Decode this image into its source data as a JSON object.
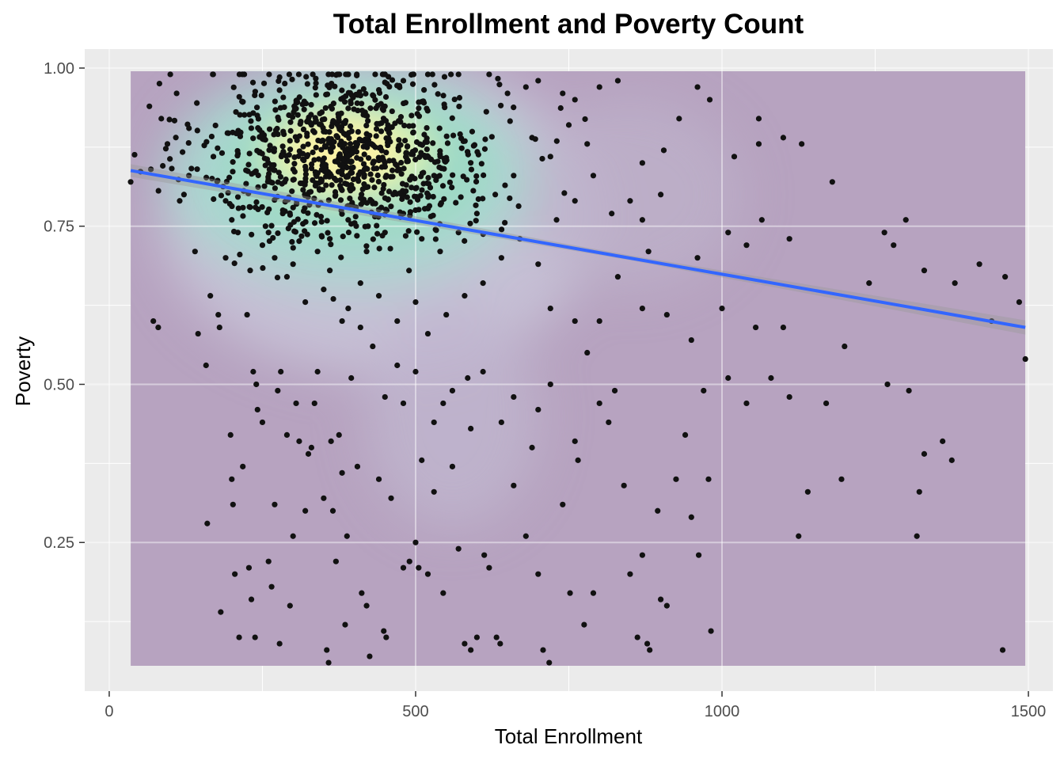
{
  "chart_data": {
    "type": "scatter",
    "title": "Total Enrollment and Poverty Count",
    "xlabel": "Total Enrollment",
    "ylabel": "Poverty",
    "xlim": [
      -40,
      1540
    ],
    "ylim": [
      0.015,
      1.03
    ],
    "x_ticks": [
      0,
      500,
      1000,
      1500
    ],
    "x_tick_labels": [
      "0",
      "500",
      "1000",
      "1500"
    ],
    "y_ticks": [
      0.25,
      0.5,
      0.75,
      1.0
    ],
    "y_tick_labels": [
      "0.25",
      "0.50",
      "0.75",
      "1.00"
    ],
    "grid": true,
    "legend": "none",
    "density_extent": {
      "x": [
        35,
        1495
      ],
      "y": [
        0.055,
        0.995
      ]
    },
    "density_hotspot": {
      "x": 390,
      "y": 0.865
    },
    "trend_line": {
      "x": [
        35,
        1495
      ],
      "y": [
        0.838,
        0.59
      ]
    },
    "colors": {
      "panel_background": "#EBEBEB",
      "density_low": "#B7A3C0",
      "density_high": "#FDF3A6",
      "points": "#111111",
      "trend_line": "#3366FF",
      "confidence_band": "#999999"
    },
    "points": [
      [
        35,
        0.82
      ],
      [
        68,
        0.84
      ],
      [
        72,
        0.6
      ],
      [
        80,
        0.59
      ],
      [
        85,
        0.92
      ],
      [
        95,
        0.88
      ],
      [
        110,
        0.96
      ],
      [
        115,
        0.79
      ],
      [
        122,
        0.8
      ],
      [
        130,
        0.83
      ],
      [
        140,
        0.71
      ],
      [
        145,
        0.58
      ],
      [
        158,
        0.53
      ],
      [
        160,
        0.28
      ],
      [
        165,
        0.64
      ],
      [
        170,
        0.86
      ],
      [
        178,
        0.61
      ],
      [
        180,
        0.59
      ],
      [
        182,
        0.14
      ],
      [
        190,
        0.79
      ],
      [
        198,
        0.42
      ],
      [
        200,
        0.35
      ],
      [
        202,
        0.31
      ],
      [
        205,
        0.2
      ],
      [
        212,
        0.1
      ],
      [
        218,
        0.37
      ],
      [
        225,
        0.61
      ],
      [
        228,
        0.21
      ],
      [
        232,
        0.16
      ],
      [
        235,
        0.52
      ],
      [
        238,
        0.1
      ],
      [
        240,
        0.5
      ],
      [
        242,
        0.46
      ],
      [
        250,
        0.44
      ],
      [
        260,
        0.22
      ],
      [
        265,
        0.18
      ],
      [
        270,
        0.31
      ],
      [
        275,
        0.49
      ],
      [
        278,
        0.09
      ],
      [
        280,
        0.52
      ],
      [
        290,
        0.42
      ],
      [
        295,
        0.15
      ],
      [
        300,
        0.26
      ],
      [
        305,
        0.47
      ],
      [
        310,
        0.41
      ],
      [
        320,
        0.3
      ],
      [
        325,
        0.39
      ],
      [
        330,
        0.4
      ],
      [
        335,
        0.47
      ],
      [
        340,
        0.52
      ],
      [
        350,
        0.32
      ],
      [
        355,
        0.08
      ],
      [
        358,
        0.06
      ],
      [
        362,
        0.41
      ],
      [
        365,
        0.3
      ],
      [
        370,
        0.22
      ],
      [
        375,
        0.42
      ],
      [
        380,
        0.36
      ],
      [
        385,
        0.12
      ],
      [
        388,
        0.26
      ],
      [
        395,
        0.51
      ],
      [
        405,
        0.37
      ],
      [
        412,
        0.17
      ],
      [
        420,
        0.15
      ],
      [
        425,
        0.07
      ],
      [
        440,
        0.35
      ],
      [
        448,
        0.11
      ],
      [
        452,
        0.1
      ],
      [
        460,
        0.32
      ],
      [
        480,
        0.21
      ],
      [
        490,
        0.22
      ],
      [
        500,
        0.25
      ],
      [
        505,
        0.21
      ],
      [
        520,
        0.2
      ],
      [
        530,
        0.33
      ],
      [
        545,
        0.17
      ],
      [
        560,
        0.37
      ],
      [
        570,
        0.24
      ],
      [
        580,
        0.09
      ],
      [
        590,
        0.08
      ],
      [
        600,
        0.1
      ],
      [
        612,
        0.23
      ],
      [
        620,
        0.21
      ],
      [
        632,
        0.1
      ],
      [
        638,
        0.09
      ],
      [
        660,
        0.34
      ],
      [
        680,
        0.26
      ],
      [
        700,
        0.2
      ],
      [
        708,
        0.08
      ],
      [
        718,
        0.06
      ],
      [
        740,
        0.31
      ],
      [
        752,
        0.17
      ],
      [
        760,
        0.41
      ],
      [
        765,
        0.38
      ],
      [
        775,
        0.12
      ],
      [
        790,
        0.17
      ],
      [
        800,
        0.47
      ],
      [
        815,
        0.44
      ],
      [
        825,
        0.49
      ],
      [
        840,
        0.34
      ],
      [
        850,
        0.2
      ],
      [
        862,
        0.1
      ],
      [
        870,
        0.23
      ],
      [
        878,
        0.09
      ],
      [
        882,
        0.08
      ],
      [
        895,
        0.3
      ],
      [
        900,
        0.16
      ],
      [
        910,
        0.15
      ],
      [
        925,
        0.35
      ],
      [
        940,
        0.42
      ],
      [
        950,
        0.29
      ],
      [
        962,
        0.23
      ],
      [
        970,
        0.49
      ],
      [
        978,
        0.35
      ],
      [
        982,
        0.11
      ],
      [
        1040,
        0.47
      ],
      [
        1055,
        0.59
      ],
      [
        1080,
        0.51
      ],
      [
        1110,
        0.48
      ],
      [
        1125,
        0.26
      ],
      [
        1140,
        0.33
      ],
      [
        1170,
        0.47
      ],
      [
        1195,
        0.35
      ],
      [
        1270,
        0.5
      ],
      [
        1305,
        0.49
      ],
      [
        1318,
        0.26
      ],
      [
        1322,
        0.33
      ],
      [
        1330,
        0.39
      ],
      [
        1360,
        0.41
      ],
      [
        1375,
        0.38
      ],
      [
        1440,
        0.6
      ],
      [
        1458,
        0.08
      ],
      [
        1495,
        0.54
      ],
      [
        1200,
        0.56
      ],
      [
        1240,
        0.66
      ],
      [
        1280,
        0.72
      ],
      [
        1330,
        0.68
      ],
      [
        1380,
        0.66
      ],
      [
        1420,
        0.69
      ],
      [
        1462,
        0.67
      ],
      [
        1485,
        0.63
      ],
      [
        1265,
        0.74
      ],
      [
        1300,
        0.76
      ],
      [
        1180,
        0.82
      ],
      [
        1110,
        0.73
      ],
      [
        1060,
        0.88
      ],
      [
        1100,
        0.89
      ],
      [
        1130,
        0.88
      ],
      [
        1060,
        0.92
      ],
      [
        1020,
        0.86
      ],
      [
        980,
        0.95
      ],
      [
        960,
        0.97
      ],
      [
        930,
        0.92
      ],
      [
        905,
        0.87
      ],
      [
        870,
        0.85
      ],
      [
        830,
        0.98
      ],
      [
        800,
        0.97
      ],
      [
        760,
        0.95
      ],
      [
        740,
        0.96
      ],
      [
        700,
        0.98
      ],
      [
        680,
        0.97
      ],
      [
        650,
        0.96
      ],
      [
        620,
        0.99
      ],
      [
        570,
        0.99
      ],
      [
        520,
        0.99
      ],
      [
        480,
        0.98
      ],
      [
        450,
        0.99
      ],
      [
        900,
        0.8
      ],
      [
        870,
        0.76
      ],
      [
        880,
        0.71
      ],
      [
        960,
        0.7
      ],
      [
        1010,
        0.74
      ],
      [
        1040,
        0.72
      ],
      [
        1065,
        0.76
      ],
      [
        1100,
        0.59
      ],
      [
        1010,
        0.51
      ],
      [
        1000,
        0.62
      ],
      [
        950,
        0.57
      ],
      [
        910,
        0.61
      ],
      [
        870,
        0.62
      ],
      [
        830,
        0.67
      ],
      [
        800,
        0.6
      ],
      [
        760,
        0.6
      ],
      [
        720,
        0.62
      ],
      [
        780,
        0.55
      ],
      [
        720,
        0.5
      ],
      [
        700,
        0.46
      ],
      [
        690,
        0.4
      ],
      [
        660,
        0.48
      ],
      [
        640,
        0.44
      ],
      [
        610,
        0.52
      ],
      [
        590,
        0.43
      ],
      [
        585,
        0.51
      ],
      [
        560,
        0.49
      ],
      [
        545,
        0.47
      ],
      [
        530,
        0.44
      ],
      [
        510,
        0.38
      ],
      [
        500,
        0.52
      ],
      [
        480,
        0.47
      ],
      [
        470,
        0.53
      ],
      [
        450,
        0.48
      ],
      [
        430,
        0.56
      ],
      [
        410,
        0.59
      ],
      [
        390,
        0.62
      ],
      [
        380,
        0.6
      ],
      [
        350,
        0.65
      ],
      [
        320,
        0.63
      ],
      [
        290,
        0.67
      ],
      [
        270,
        0.7
      ],
      [
        250,
        0.72
      ],
      [
        230,
        0.68
      ],
      [
        210,
        0.74
      ],
      [
        190,
        0.7
      ],
      [
        200,
        0.76
      ],
      [
        230,
        0.78
      ],
      [
        260,
        0.74
      ],
      [
        300,
        0.69
      ],
      [
        340,
        0.71
      ],
      [
        360,
        0.68
      ],
      [
        410,
        0.66
      ],
      [
        440,
        0.64
      ],
      [
        470,
        0.6
      ],
      [
        500,
        0.63
      ],
      [
        520,
        0.58
      ],
      [
        550,
        0.61
      ],
      [
        580,
        0.64
      ],
      [
        610,
        0.66
      ],
      [
        640,
        0.7
      ],
      [
        670,
        0.73
      ],
      [
        700,
        0.69
      ],
      [
        730,
        0.76
      ],
      [
        760,
        0.79
      ],
      [
        790,
        0.83
      ],
      [
        820,
        0.77
      ],
      [
        850,
        0.79
      ],
      [
        780,
        0.88
      ],
      [
        750,
        0.91
      ],
      [
        720,
        0.86
      ],
      [
        690,
        0.89
      ],
      [
        660,
        0.83
      ],
      [
        630,
        0.8
      ],
      [
        600,
        0.77
      ],
      [
        570,
        0.74
      ],
      [
        540,
        0.71
      ],
      [
        510,
        0.73
      ],
      [
        480,
        0.77
      ],
      [
        450,
        0.74
      ],
      [
        420,
        0.71
      ],
      [
        390,
        0.76
      ],
      [
        360,
        0.73
      ]
    ]
  }
}
